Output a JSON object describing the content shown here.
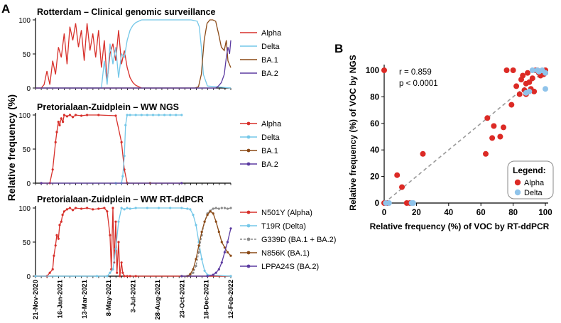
{
  "panel_labels": {
    "a": "A",
    "b": "B"
  },
  "shared": {
    "ylabel": "Relative frequency (%)",
    "x_ticks": [
      "21-Nov-2020",
      "16-Jan-2021",
      "13-Mar-2021",
      "8-May-2021",
      "3-Jul-2021",
      "28-Aug-2021",
      "23-Oct-2021",
      "18-Dec-2021",
      "12-Feb-2022"
    ],
    "y_ticks": [
      "0",
      "50",
      "100"
    ]
  },
  "colors": {
    "alpha": "#d7302b",
    "delta": "#74c7e8",
    "ba1": "#8b4a17",
    "ba2": "#5b3aa0",
    "g339d": "#8a8a8a",
    "scatter_alpha": "#dc2a25",
    "scatter_delta": "#8fc3ea",
    "diag": "#999999"
  },
  "chart_data": [
    {
      "type": "line",
      "title": "Rotterdam – Clinical genomic surveillance",
      "x_range": [
        0,
        477
      ],
      "ylim": [
        0,
        100
      ],
      "legend": [
        "Alpha",
        "Delta",
        "BA.1",
        "BA.2"
      ],
      "series": [
        {
          "name": "Alpha",
          "key": "alpha",
          "x": [
            0,
            14,
            21,
            28,
            35,
            42,
            49,
            56,
            63,
            70,
            77,
            84,
            91,
            98,
            105,
            112,
            119,
            126,
            133,
            140,
            147,
            154,
            161,
            168,
            175,
            182,
            189,
            196,
            203,
            210,
            217,
            224,
            231,
            238,
            245,
            252,
            259
          ],
          "y": [
            0,
            0,
            5,
            25,
            5,
            40,
            20,
            60,
            45,
            80,
            35,
            90,
            70,
            95,
            60,
            85,
            40,
            95,
            55,
            80,
            45,
            85,
            30,
            70,
            10,
            50,
            65,
            40,
            85,
            35,
            55,
            30,
            15,
            8,
            4,
            2,
            0
          ]
        },
        {
          "name": "Delta",
          "key": "delta",
          "x": [
            0,
            161,
            168,
            175,
            182,
            189,
            196,
            203,
            210,
            217,
            224,
            231,
            238,
            245,
            252,
            259,
            266,
            280,
            300,
            340,
            380,
            395,
            400,
            405,
            410,
            420,
            477
          ],
          "y": [
            0,
            0,
            40,
            5,
            65,
            35,
            60,
            15,
            50,
            45,
            70,
            85,
            92,
            96,
            98,
            100,
            100,
            100,
            100,
            100,
            100,
            98,
            90,
            60,
            20,
            3,
            0
          ]
        },
        {
          "name": "BA.1",
          "key": "ba1",
          "x": [
            0,
            390,
            398,
            405,
            412,
            419,
            426,
            433,
            440,
            447,
            454,
            461,
            466,
            470,
            477
          ],
          "y": [
            0,
            0,
            2,
            20,
            70,
            95,
            100,
            100,
            98,
            80,
            60,
            55,
            70,
            40,
            30
          ]
        },
        {
          "name": "BA.2",
          "key": "ba2",
          "x": [
            0,
            440,
            447,
            454,
            461,
            466,
            470,
            474,
            477
          ],
          "y": [
            0,
            0,
            3,
            8,
            20,
            45,
            60,
            50,
            70
          ]
        }
      ]
    },
    {
      "type": "line",
      "title": "Pretorialaan-Zuidplein – WW NGS",
      "x_range": [
        0,
        477
      ],
      "ylim": [
        0,
        100
      ],
      "legend": [
        "Alpha",
        "Delta",
        "BA.1",
        "BA.2"
      ],
      "series": [
        {
          "name": "Alpha",
          "key": "alpha",
          "x": [
            14,
            35,
            42,
            49,
            52,
            56,
            59,
            63,
            67,
            70,
            77,
            84,
            91,
            98,
            112,
            126,
            154,
            196,
            210,
            217,
            224
          ],
          "y": [
            0,
            0,
            20,
            60,
            75,
            90,
            85,
            95,
            90,
            100,
            98,
            100,
            97,
            100,
            99,
            100,
            100,
            99,
            60,
            20,
            0
          ]
        },
        {
          "name": "Delta",
          "key": "delta",
          "x": [
            196,
            210,
            213,
            217,
            220,
            224,
            231,
            245,
            259,
            273,
            287,
            301,
            315,
            329,
            343,
            357
          ],
          "y": [
            0,
            0,
            10,
            40,
            85,
            100,
            100,
            100,
            100,
            100,
            100,
            100,
            100,
            100,
            100,
            100
          ]
        },
        {
          "name": "BA.1",
          "key": "ba1",
          "x": [
            224,
            280,
            357
          ],
          "y": [
            0,
            0,
            0
          ]
        },
        {
          "name": "BA.2",
          "key": "ba2",
          "x": [
            14,
            357
          ],
          "y": [
            0,
            0
          ]
        }
      ]
    },
    {
      "type": "line",
      "title": "Pretorialaan-Zuidplein – WW RT-ddPCR",
      "x_range": [
        0,
        477
      ],
      "ylim": [
        0,
        100
      ],
      "legend": [
        "N501Y (Alpha)",
        "T19R (Delta)",
        "G339D (BA.1 + BA.2)",
        "N856K (BA.1)",
        "LPPA24S (BA.2)"
      ],
      "series": [
        {
          "name": "N501Y (Alpha)",
          "key": "alpha",
          "x": [
            0,
            28,
            35,
            42,
            45,
            49,
            52,
            56,
            59,
            63,
            66,
            70,
            77,
            84,
            91,
            98,
            112,
            126,
            140,
            154,
            168,
            175,
            182,
            185,
            189,
            192,
            196,
            199,
            203,
            206,
            210,
            213,
            217,
            224,
            231,
            245,
            477
          ],
          "y": [
            0,
            0,
            5,
            10,
            30,
            45,
            60,
            55,
            75,
            80,
            90,
            95,
            98,
            100,
            97,
            100,
            99,
            100,
            98,
            99,
            100,
            95,
            60,
            10,
            100,
            20,
            80,
            5,
            50,
            0,
            20,
            5,
            0,
            0,
            0,
            0,
            0
          ]
        },
        {
          "name": "T19R (Delta)",
          "key": "delta",
          "x": [
            0,
            150,
            175,
            182,
            189,
            196,
            203,
            210,
            217,
            224,
            231,
            245,
            273,
            301,
            329,
            357,
            371,
            378,
            385,
            392,
            399,
            406,
            413,
            420,
            477
          ],
          "y": [
            0,
            0,
            0,
            5,
            10,
            40,
            80,
            100,
            98,
            100,
            99,
            100,
            100,
            100,
            100,
            100,
            99,
            98,
            90,
            75,
            50,
            25,
            8,
            2,
            0
          ]
        },
        {
          "name": "G339D (BA.1 + BA.2)",
          "key": "g339d",
          "x": [
            357,
            371,
            378,
            385,
            392,
            399,
            406,
            413,
            420,
            427,
            434,
            441,
            448,
            455,
            462,
            469,
            477
          ],
          "y": [
            0,
            0,
            2,
            5,
            15,
            35,
            60,
            80,
            92,
            96,
            99,
            100,
            99,
            100,
            100,
            99,
            100
          ]
        },
        {
          "name": "N856K (BA.1)",
          "key": "ba1",
          "x": [
            357,
            371,
            378,
            385,
            392,
            399,
            406,
            413,
            420,
            427,
            434,
            441,
            448,
            455,
            462,
            469,
            477
          ],
          "y": [
            0,
            0,
            3,
            10,
            25,
            45,
            65,
            80,
            90,
            95,
            92,
            80,
            65,
            50,
            42,
            35,
            30
          ]
        },
        {
          "name": "LPPA24S (BA.2)",
          "key": "ba2",
          "x": [
            357,
            420,
            434,
            441,
            448,
            455,
            462,
            469,
            477
          ],
          "y": [
            0,
            0,
            2,
            5,
            10,
            20,
            35,
            50,
            70
          ]
        }
      ]
    },
    {
      "type": "scatter",
      "title": "",
      "xlabel": "Relative frequency (%) of VOC by RT-ddPCR",
      "ylabel": "Relative frequency (%) of VOC by NGS",
      "xlim": [
        0,
        100
      ],
      "ylim": [
        0,
        100
      ],
      "x_ticks": [
        "0",
        "20",
        "40",
        "60",
        "80",
        "100"
      ],
      "y_ticks": [
        "0",
        "20",
        "40",
        "60",
        "80",
        "100"
      ],
      "annotations": [
        "r = 0.859",
        "p < 0.0001"
      ],
      "legend_title": "Legend:",
      "series": [
        {
          "name": "Alpha",
          "key": "alpha",
          "points": [
            [
              0,
              100
            ],
            [
              0,
              0
            ],
            [
              1,
              0
            ],
            [
              2,
              0
            ],
            [
              8,
              21
            ],
            [
              11,
              12
            ],
            [
              14,
              0
            ],
            [
              16,
              0
            ],
            [
              24,
              37
            ],
            [
              63,
              37
            ],
            [
              64,
              64
            ],
            [
              67,
              49
            ],
            [
              68,
              58
            ],
            [
              72,
              50
            ],
            [
              74,
              57
            ],
            [
              76,
              100
            ],
            [
              79,
              74
            ],
            [
              80,
              100
            ],
            [
              82,
              88
            ],
            [
              84,
              82
            ],
            [
              85,
              93
            ],
            [
              86,
              96
            ],
            [
              87,
              85
            ],
            [
              88,
              82
            ],
            [
              88,
              90
            ],
            [
              89,
              98
            ],
            [
              90,
              91
            ],
            [
              91,
              86
            ],
            [
              92,
              94
            ],
            [
              93,
              84
            ],
            [
              94,
              100
            ],
            [
              95,
              100
            ],
            [
              96,
              98
            ],
            [
              97,
              96
            ],
            [
              98,
              99
            ],
            [
              99,
              97
            ],
            [
              100,
              100
            ],
            [
              100,
              98
            ]
          ]
        },
        {
          "name": "Delta",
          "key": "delta",
          "points": [
            [
              1,
              0
            ],
            [
              3,
              0
            ],
            [
              17,
              0
            ],
            [
              18,
              0
            ],
            [
              88,
              83
            ],
            [
              90,
              84
            ],
            [
              92,
              100
            ],
            [
              95,
              100
            ],
            [
              96,
              99
            ],
            [
              98,
              100
            ],
            [
              100,
              98
            ],
            [
              100,
              86
            ]
          ]
        }
      ]
    }
  ]
}
